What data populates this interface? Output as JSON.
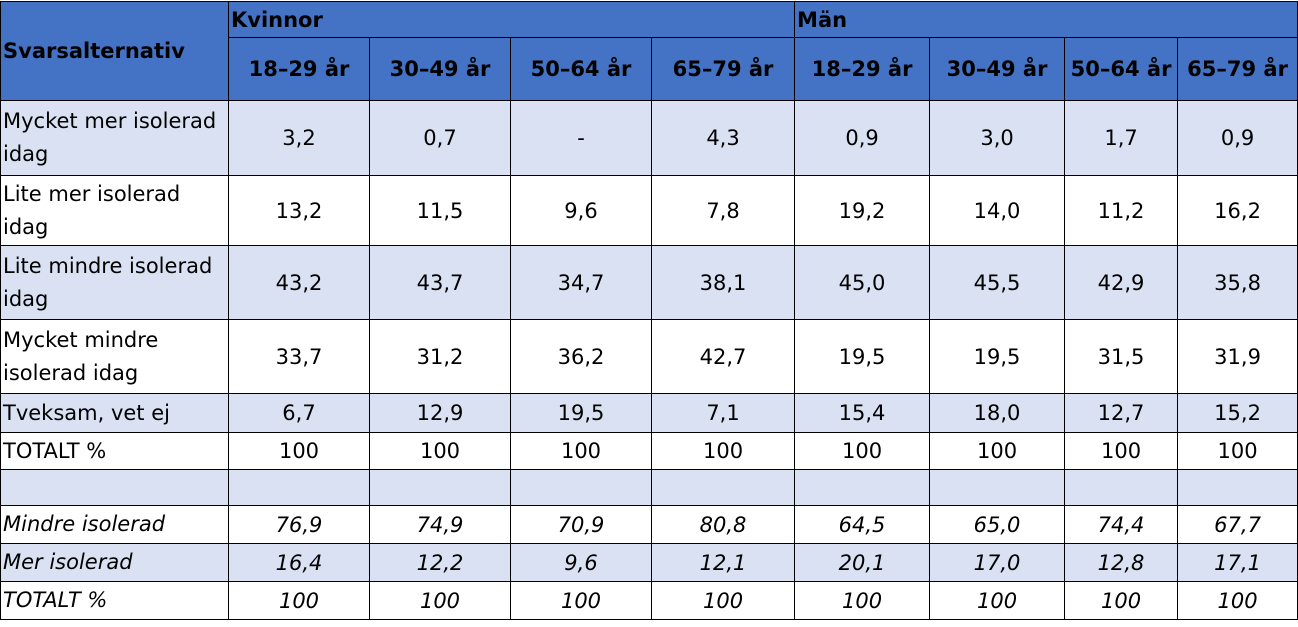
{
  "header": {
    "row_label": "Svarsalternativ",
    "groups": [
      "Kvinnor",
      "Män"
    ],
    "columns": [
      "18–29 år",
      "30–49 år",
      "50–64 år",
      "65–79 år",
      "18–29 år",
      "30–49 år",
      "50–64 år",
      "65–79 år"
    ]
  },
  "rows": [
    {
      "label": "Mycket mer isolerad idag",
      "cells": [
        "3,2",
        "0,7",
        "-",
        "4,3",
        "0,9",
        "3,0",
        "1,7",
        "0,9"
      ]
    },
    {
      "label": "Lite mer isolerad idag",
      "cells": [
        "13,2",
        "11,5",
        "9,6",
        "7,8",
        "19,2",
        "14,0",
        "11,2",
        "16,2"
      ]
    },
    {
      "label": "Lite mindre isolerad idag",
      "cells": [
        "43,2",
        "43,7",
        "34,7",
        "38,1",
        "45,0",
        "45,5",
        "42,9",
        "35,8"
      ]
    },
    {
      "label": "Mycket mindre isolerad idag",
      "cells": [
        "33,7",
        "31,2",
        "36,2",
        "42,7",
        "19,5",
        "19,5",
        "31,5",
        "31,9"
      ]
    },
    {
      "label": "Tveksam, vet ej",
      "cells": [
        "6,7",
        "12,9",
        "19,5",
        "7,1",
        "15,4",
        "18,0",
        "12,7",
        "15,2"
      ]
    },
    {
      "label": "TOTALT %",
      "cells": [
        "100",
        "100",
        "100",
        "100",
        "100",
        "100",
        "100",
        "100"
      ]
    }
  ],
  "summary_rows": [
    {
      "label": "Mindre isolerad",
      "cells": [
        "76,9",
        "74,9",
        "70,9",
        "80,8",
        "64,5",
        "65,0",
        "74,4",
        "67,7"
      ]
    },
    {
      "label": "Mer isolerad",
      "cells": [
        "16,4",
        "12,2",
        "9,6",
        "12,1",
        "20,1",
        "17,0",
        "12,8",
        "17,1"
      ]
    },
    {
      "label": "TOTALT %",
      "cells": [
        "100",
        "100",
        "100",
        "100",
        "100",
        "100",
        "100",
        "100"
      ]
    }
  ]
}
